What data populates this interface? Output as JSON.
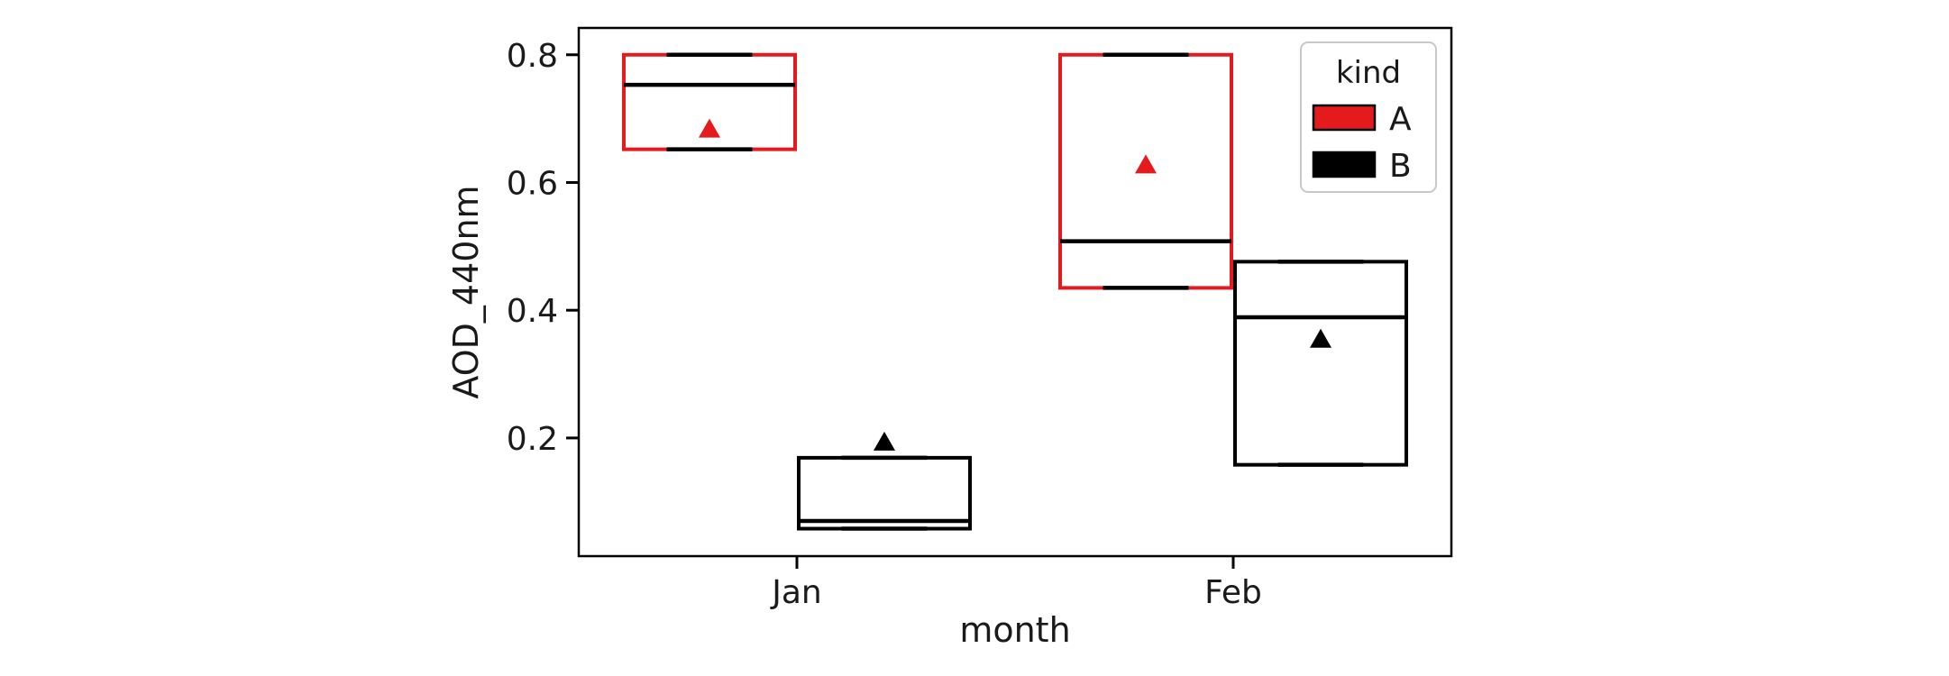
{
  "figure": {
    "background_color": "#ffffff",
    "frame_color": "#000000"
  },
  "chart_data": {
    "type": "grouped_boxplot",
    "title": "",
    "xlabel": "month",
    "ylabel": "AOD_440nm",
    "categories": [
      "Jan",
      "Feb"
    ],
    "yticks": [
      {
        "value": 0.2,
        "label": "0.2"
      },
      {
        "value": 0.4,
        "label": "0.4"
      },
      {
        "value": 0.6,
        "label": "0.6"
      },
      {
        "value": 0.8,
        "label": "0.8"
      }
    ],
    "ylim": [
      0.015,
      0.842
    ],
    "grid": false,
    "legend": {
      "title": "kind",
      "position": "upper right",
      "entries": [
        {
          "label": "A",
          "color": "#e41a1c"
        },
        {
          "label": "B",
          "color": "#000000"
        }
      ]
    },
    "series": [
      {
        "name": "A",
        "color": "#e41a1c",
        "boxes": [
          {
            "category": "Jan",
            "whisker_low": 0.652,
            "q1": 0.652,
            "median": 0.753,
            "q3": 0.8,
            "whisker_high": 0.8,
            "mean": 0.683
          },
          {
            "category": "Feb",
            "whisker_low": 0.435,
            "q1": 0.435,
            "median": 0.508,
            "q3": 0.8,
            "whisker_high": 0.8,
            "mean": 0.627
          }
        ]
      },
      {
        "name": "B",
        "color": "#000000",
        "boxes": [
          {
            "category": "Jan",
            "whisker_low": 0.058,
            "q1": 0.058,
            "median": 0.07,
            "q3": 0.169,
            "whisker_high": 0.169,
            "mean": 0.193
          },
          {
            "category": "Feb",
            "whisker_low": 0.158,
            "q1": 0.158,
            "median": 0.389,
            "q3": 0.476,
            "whisker_high": 0.476,
            "mean": 0.354
          }
        ]
      }
    ],
    "style": {
      "box_fill": "#ffffff",
      "median_color": "#000000",
      "cap_color": "#000000",
      "mean_marker": "triangle_up",
      "legend_border_color": "#c8c8c8"
    }
  }
}
